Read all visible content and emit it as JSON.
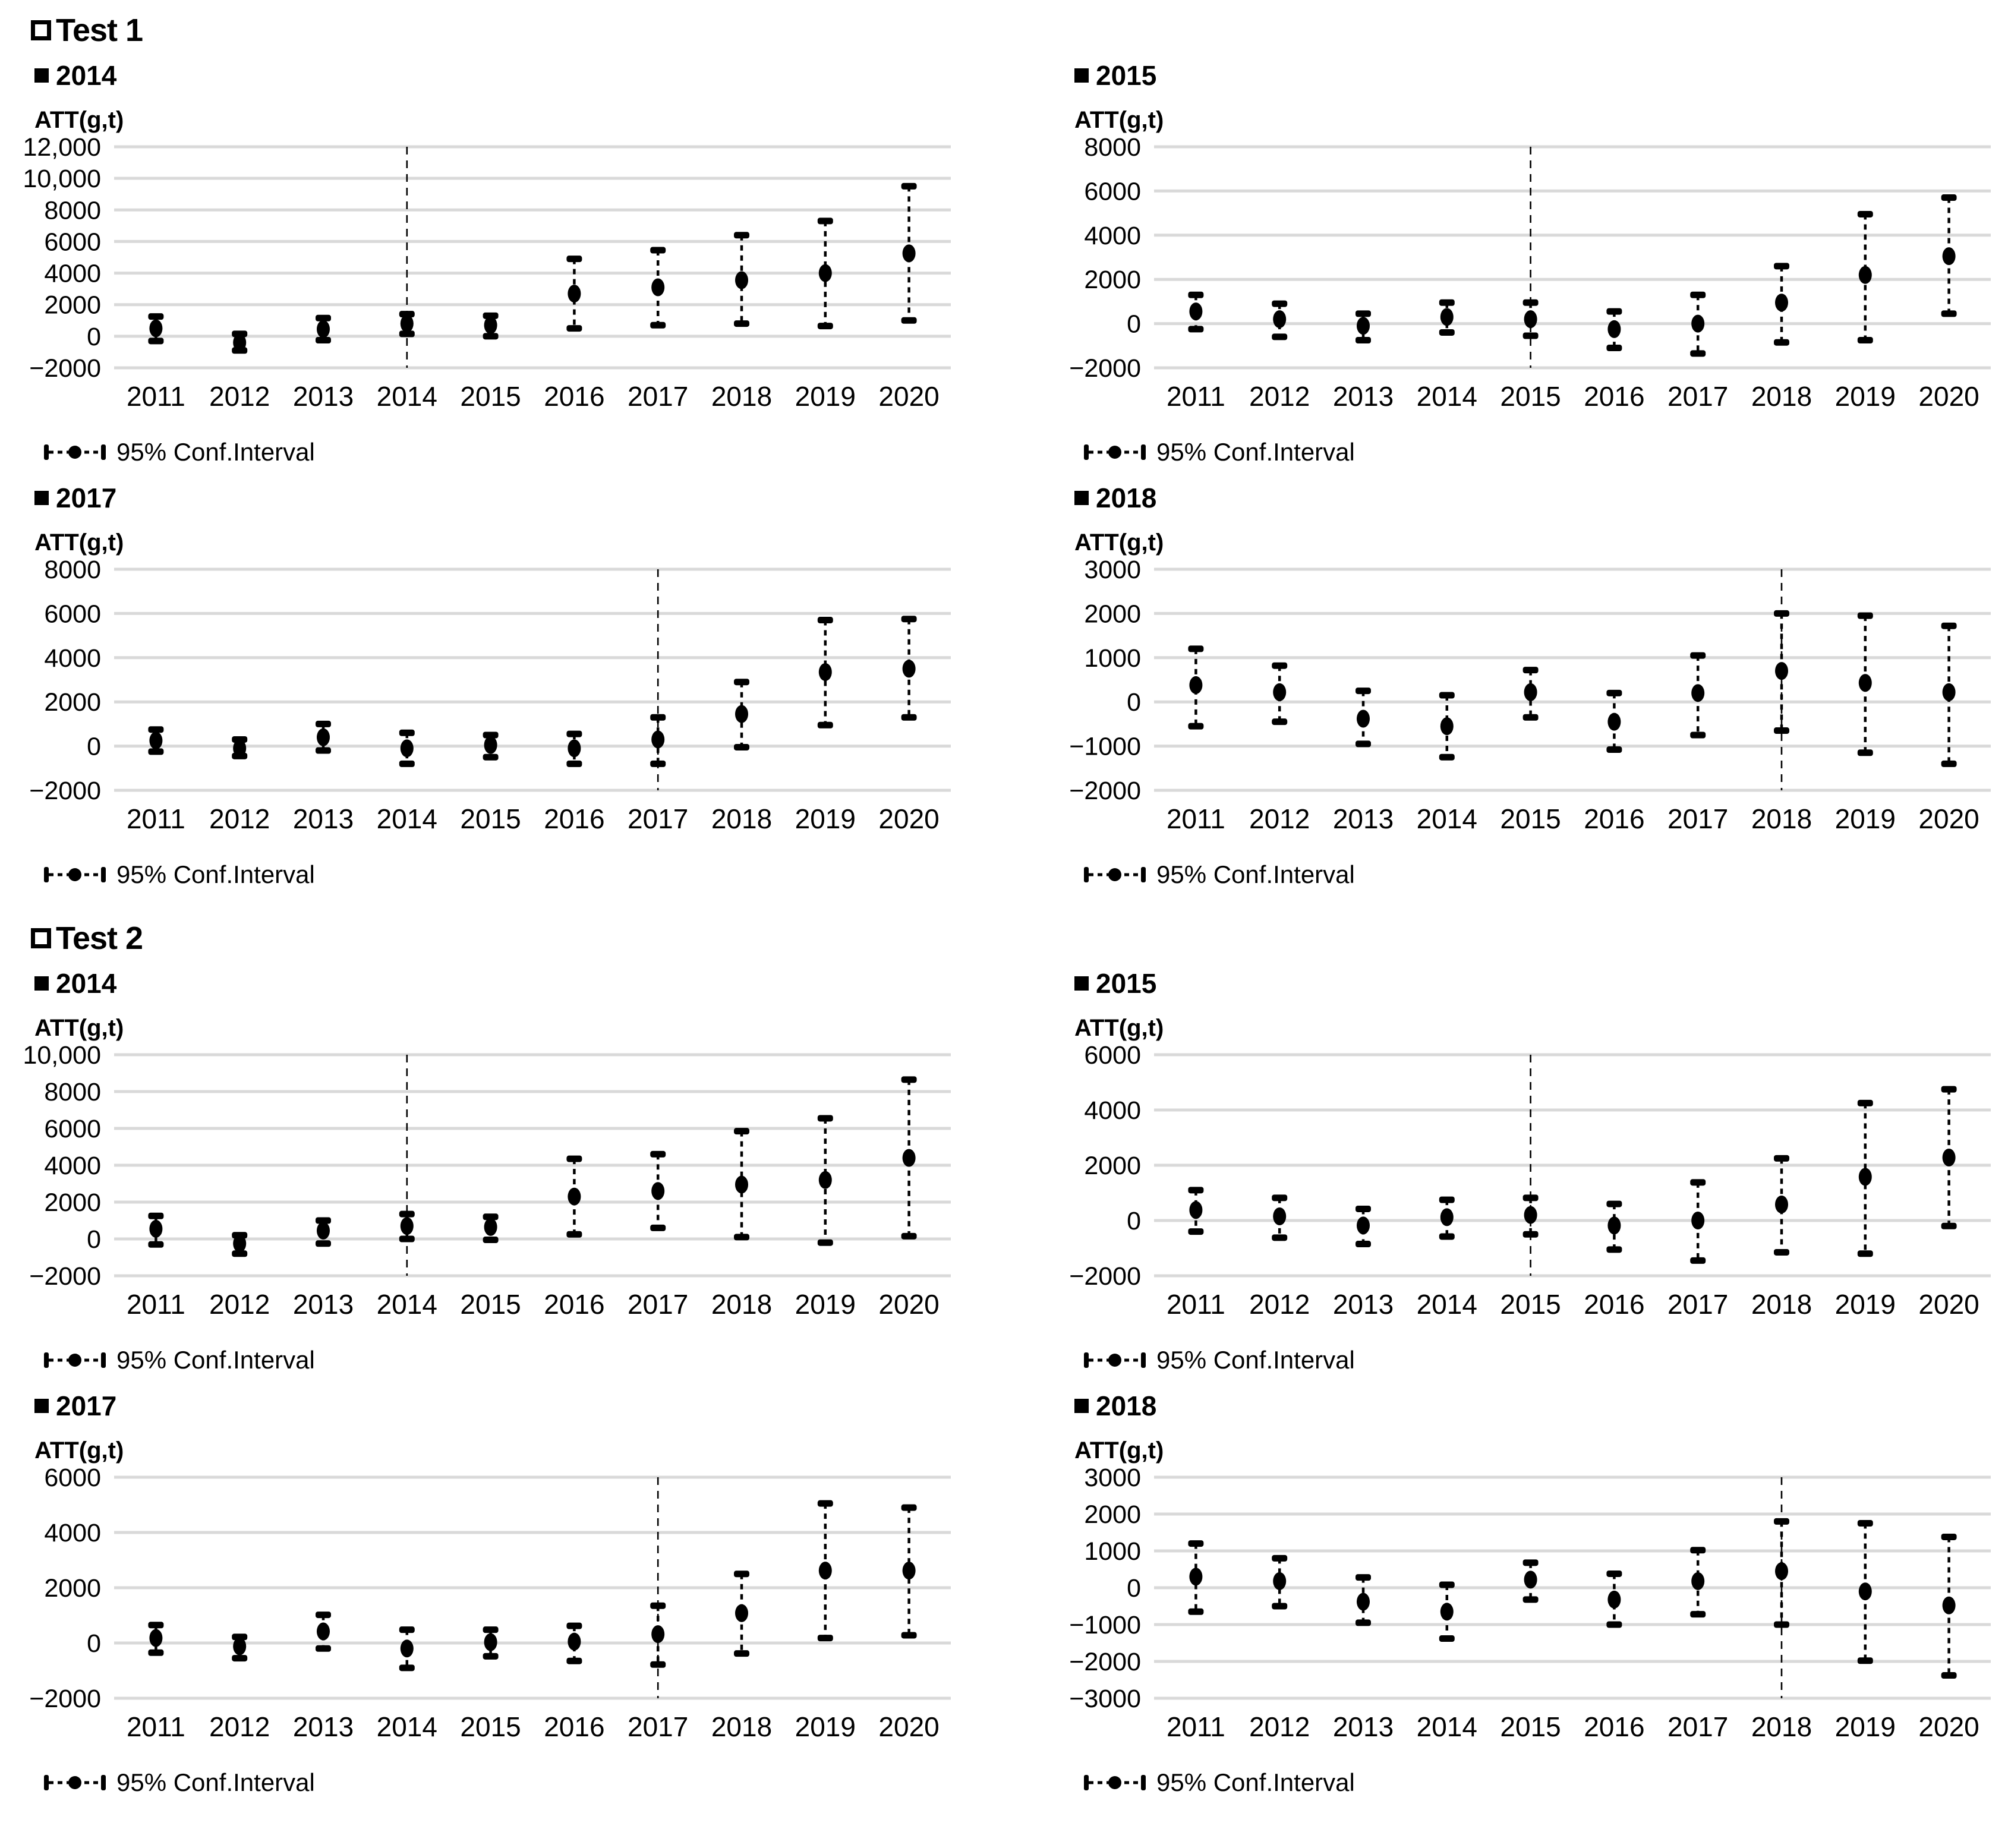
{
  "sections": [
    {
      "title": "Test 1"
    },
    {
      "title": "Test 2"
    }
  ],
  "chart_data": [
    {
      "type": "scatter",
      "section": "Test 1",
      "title": "2014",
      "ylabel": "ATT(g,t)",
      "legend": "95% Conf.Interval",
      "treatment_year": 2014,
      "grid": true,
      "legend_position": "bottom-left",
      "x": [
        2011,
        2012,
        2013,
        2014,
        2015,
        2016,
        2017,
        2018,
        2019,
        2020
      ],
      "ylim": [
        -2000,
        12000
      ],
      "ytick_step": 2000,
      "series": [
        {
          "name": "ATT point estimate",
          "values": [
            500,
            -400,
            450,
            800,
            700,
            2700,
            3100,
            3550,
            4000,
            5250
          ]
        },
        {
          "name": "95% CI lower",
          "values": [
            -300,
            -900,
            -250,
            150,
            0,
            500,
            700,
            800,
            650,
            1000
          ]
        },
        {
          "name": "95% CI upper",
          "values": [
            1250,
            150,
            1150,
            1400,
            1300,
            4900,
            5450,
            6400,
            7300,
            9500
          ]
        }
      ]
    },
    {
      "type": "scatter",
      "section": "Test 1",
      "title": "2015",
      "ylabel": "ATT(g,t)",
      "legend": "95% Conf.Interval",
      "treatment_year": 2015,
      "grid": true,
      "legend_position": "bottom-left",
      "x": [
        2011,
        2012,
        2013,
        2014,
        2015,
        2016,
        2017,
        2018,
        2019,
        2020
      ],
      "ylim": [
        -2000,
        8000
      ],
      "ytick_step": 2000,
      "series": [
        {
          "name": "ATT point estimate",
          "values": [
            550,
            200,
            -100,
            300,
            200,
            -250,
            0,
            950,
            2200,
            3050
          ]
        },
        {
          "name": "95% CI lower",
          "values": [
            -250,
            -600,
            -750,
            -400,
            -550,
            -1100,
            -1350,
            -850,
            -750,
            450
          ]
        },
        {
          "name": "95% CI upper",
          "values": [
            1300,
            900,
            450,
            950,
            950,
            550,
            1300,
            2600,
            4950,
            5700
          ]
        }
      ]
    },
    {
      "type": "scatter",
      "section": "Test 1",
      "title": "2017",
      "ylabel": "ATT(g,t)",
      "legend": "95% Conf.Interval",
      "treatment_year": 2017,
      "grid": true,
      "legend_position": "bottom-left",
      "x": [
        2011,
        2012,
        2013,
        2014,
        2015,
        2016,
        2017,
        2018,
        2019,
        2020
      ],
      "ylim": [
        -2000,
        8000
      ],
      "ytick_step": 2000,
      "series": [
        {
          "name": "ATT point estimate",
          "values": [
            250,
            -100,
            400,
            -100,
            50,
            -100,
            300,
            1450,
            3350,
            3500
          ]
        },
        {
          "name": "95% CI lower",
          "values": [
            -250,
            -450,
            -200,
            -800,
            -500,
            -800,
            -800,
            -50,
            950,
            1300
          ]
        },
        {
          "name": "95% CI upper",
          "values": [
            750,
            300,
            1000,
            600,
            500,
            550,
            1300,
            2900,
            5700,
            5750
          ]
        }
      ]
    },
    {
      "type": "scatter",
      "section": "Test 1",
      "title": "2018",
      "ylabel": "ATT(g,t)",
      "legend": "95% Conf.Interval",
      "treatment_year": 2018,
      "grid": true,
      "legend_position": "bottom-left",
      "x": [
        2011,
        2012,
        2013,
        2014,
        2015,
        2016,
        2017,
        2018,
        2019,
        2020
      ],
      "ylim": [
        -2000,
        3000
      ],
      "ytick_step": 1000,
      "series": [
        {
          "name": "ATT point estimate",
          "values": [
            380,
            220,
            -380,
            -550,
            220,
            -450,
            200,
            700,
            430,
            220
          ]
        },
        {
          "name": "95% CI lower",
          "values": [
            -550,
            -450,
            -950,
            -1250,
            -350,
            -1080,
            -750,
            -650,
            -1150,
            -1400
          ]
        },
        {
          "name": "95% CI upper",
          "values": [
            1200,
            820,
            250,
            150,
            720,
            200,
            1050,
            2000,
            1950,
            1720
          ]
        }
      ]
    },
    {
      "type": "scatter",
      "section": "Test 2",
      "title": "2014",
      "ylabel": "ATT(g,t)",
      "legend": "95% Conf.Interval",
      "treatment_year": 2014,
      "grid": true,
      "legend_position": "bottom-left",
      "x": [
        2011,
        2012,
        2013,
        2014,
        2015,
        2016,
        2017,
        2018,
        2019,
        2020
      ],
      "ylim": [
        -2000,
        10000
      ],
      "ytick_step": 2000,
      "series": [
        {
          "name": "ATT point estimate",
          "values": [
            550,
            -250,
            450,
            700,
            650,
            2300,
            2600,
            2950,
            3200,
            4400
          ]
        },
        {
          "name": "95% CI lower",
          "values": [
            -300,
            -800,
            -250,
            0,
            -50,
            250,
            600,
            100,
            -200,
            150
          ]
        },
        {
          "name": "95% CI upper",
          "values": [
            1250,
            200,
            1000,
            1350,
            1200,
            4350,
            4600,
            5850,
            6550,
            8650
          ]
        }
      ]
    },
    {
      "type": "scatter",
      "section": "Test 2",
      "title": "2015",
      "ylabel": "ATT(g,t)",
      "legend": "95% Conf.Interval",
      "treatment_year": 2015,
      "grid": true,
      "legend_position": "bottom-left",
      "x": [
        2011,
        2012,
        2013,
        2014,
        2015,
        2016,
        2017,
        2018,
        2019,
        2020
      ],
      "ylim": [
        -2000,
        6000
      ],
      "ytick_step": 2000,
      "series": [
        {
          "name": "ATT point estimate",
          "values": [
            380,
            150,
            -180,
            120,
            200,
            -180,
            0,
            580,
            1580,
            2280
          ]
        },
        {
          "name": "95% CI lower",
          "values": [
            -400,
            -620,
            -850,
            -580,
            -500,
            -1050,
            -1450,
            -1150,
            -1200,
            -200
          ]
        },
        {
          "name": "95% CI upper",
          "values": [
            1100,
            820,
            420,
            750,
            820,
            600,
            1380,
            2250,
            4250,
            4750
          ]
        }
      ]
    },
    {
      "type": "scatter",
      "section": "Test 2",
      "title": "2017",
      "ylabel": "ATT(g,t)",
      "legend": "95% Conf.Interval",
      "treatment_year": 2017,
      "grid": true,
      "legend_position": "bottom-left",
      "x": [
        2011,
        2012,
        2013,
        2014,
        2015,
        2016,
        2017,
        2018,
        2019,
        2020
      ],
      "ylim": [
        -2000,
        6000
      ],
      "ytick_step": 2000,
      "series": [
        {
          "name": "ATT point estimate",
          "values": [
            180,
            -120,
            420,
            -200,
            30,
            50,
            320,
            1080,
            2620,
            2620
          ]
        },
        {
          "name": "95% CI lower",
          "values": [
            -350,
            -550,
            -200,
            -900,
            -480,
            -650,
            -780,
            -380,
            180,
            280
          ]
        },
        {
          "name": "95% CI upper",
          "values": [
            650,
            220,
            1020,
            480,
            480,
            620,
            1350,
            2500,
            5050,
            4900
          ]
        }
      ]
    },
    {
      "type": "scatter",
      "section": "Test 2",
      "title": "2018",
      "ylabel": "ATT(g,t)",
      "legend": "95% Conf.Interval",
      "treatment_year": 2018,
      "grid": true,
      "legend_position": "bottom-left",
      "x": [
        2011,
        2012,
        2013,
        2014,
        2015,
        2016,
        2017,
        2018,
        2019,
        2020
      ],
      "ylim": [
        -3000,
        3000
      ],
      "ytick_step": 1000,
      "series": [
        {
          "name": "ATT point estimate",
          "values": [
            300,
            180,
            -380,
            -650,
            220,
            -320,
            180,
            450,
            -100,
            -480
          ]
        },
        {
          "name": "95% CI lower",
          "values": [
            -650,
            -500,
            -950,
            -1380,
            -320,
            -1000,
            -720,
            -1000,
            -1980,
            -2380
          ]
        },
        {
          "name": "95% CI upper",
          "values": [
            1200,
            800,
            280,
            80,
            680,
            380,
            1020,
            1800,
            1750,
            1380
          ]
        }
      ]
    }
  ],
  "style": {
    "grid_color": "#d9d9d9",
    "marker_color": "#000000"
  }
}
